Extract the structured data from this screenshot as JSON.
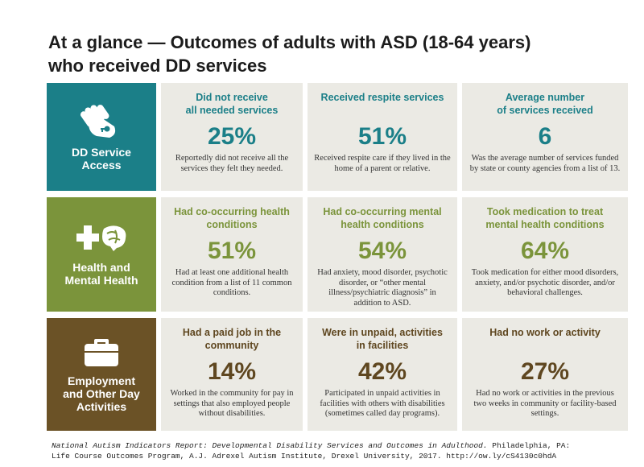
{
  "title": {
    "line1": "At a glance — Outcomes of adults with ASD (18-64 years)",
    "line2": "who received DD services"
  },
  "colors": {
    "teal": "#1b7f88",
    "olive": "#7b943b",
    "brown": "#6b5226",
    "cell_bg": "#ebeae4"
  },
  "rows": [
    {
      "label_line1": "DD Service",
      "label_line2": "Access",
      "icon": "hand-key-icon",
      "cells": [
        {
          "heading_line1": "Did not receive",
          "heading_line2": "all needed services",
          "stat": "25%",
          "desc": "Reportedly did not receive all the services they felt they needed."
        },
        {
          "heading_line1": "Received respite services",
          "heading_line2": "",
          "stat": "51%",
          "desc": "Received respite care if they lived in the home of a parent or relative."
        },
        {
          "heading_line1": "Average number",
          "heading_line2": "of services received",
          "stat": "6",
          "desc": "Was the average number of services funded by state or county agencies from a list of 13."
        }
      ]
    },
    {
      "label_line1": "Health and",
      "label_line2": "Mental Health",
      "icon": "health-cross-brain-icon",
      "cells": [
        {
          "heading_line1": "Had co-occurring health",
          "heading_line2": "conditions",
          "stat": "51%",
          "desc": "Had at least one additional health condition from a list of 11 common conditions."
        },
        {
          "heading_line1": "Had co-occurring mental",
          "heading_line2": "health conditions",
          "stat": "54%",
          "desc": "Had anxiety, mood disorder, psychotic disorder, or “other mental illness/psychiatric diagnosis” in addition to ASD."
        },
        {
          "heading_line1": "Took medication to treat",
          "heading_line2": "mental health conditions",
          "stat": "64%",
          "desc": "Took medication for either mood disorders, anxiety, and/or psychotic disorder, and/or behavioral challenges."
        }
      ]
    },
    {
      "label_line1": "Employment",
      "label_line2": "and Other Day",
      "label_line3": "Activities",
      "icon": "briefcase-icon",
      "cells": [
        {
          "heading_line1": "Had a paid job in the",
          "heading_line2": "community",
          "stat": "14%",
          "desc": "Worked in the community for pay in settings that also employed people without disabilities."
        },
        {
          "heading_line1": "Were in unpaid, activities",
          "heading_line2": "in facilities",
          "stat": "42%",
          "desc": "Participated in unpaid activities in facilities with others with disabilities (sometimes called day programs)."
        },
        {
          "heading_line1": "Had no work or activity",
          "heading_line2": "",
          "stat": "27%",
          "desc": "Had no work or activities in the previous two weeks in community or facility-based settings."
        }
      ]
    }
  ],
  "citation": {
    "italic": "National Autism Indicators Report: Developmental Disability Services and Outcomes in Adulthood.",
    "line1_rest": " Philadelphia, PA:",
    "line2": "Life Course Outcomes Program, A.J. Adrexel Autism Institute, Drexel University, 2017. http://ow.ly/cS4130c0hdA"
  }
}
